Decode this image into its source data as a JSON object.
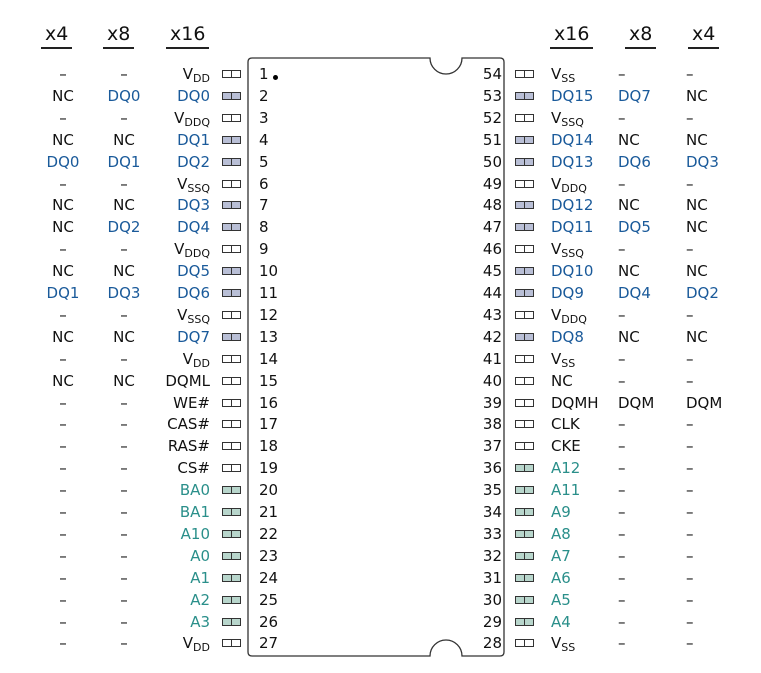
{
  "headers": {
    "left": [
      "x4",
      "x8",
      "x16"
    ],
    "right": [
      "x16",
      "x8",
      "x4"
    ]
  },
  "colors": {
    "data_signal": "#1a5a9a",
    "address_signal": "#2a8f8a",
    "default": "#111111"
  },
  "left_pins": [
    {
      "num": "1",
      "x4": "–",
      "x8": "–",
      "x16": "V",
      "x16_sub": "DD",
      "x16_color": "default",
      "x4_color": "default",
      "x8_color": "default",
      "fill": "none"
    },
    {
      "num": "2",
      "x4": "NC",
      "x8": "DQ0",
      "x16": "DQ0",
      "x16_sub": "",
      "x16_color": "data_signal",
      "x4_color": "default",
      "x8_color": "data_signal",
      "fill": "blue"
    },
    {
      "num": "3",
      "x4": "–",
      "x8": "–",
      "x16": "V",
      "x16_sub": "DDQ",
      "x16_color": "default",
      "x4_color": "default",
      "x8_color": "default",
      "fill": "none"
    },
    {
      "num": "4",
      "x4": "NC",
      "x8": "NC",
      "x16": "DQ1",
      "x16_sub": "",
      "x16_color": "data_signal",
      "x4_color": "default",
      "x8_color": "default",
      "fill": "blue"
    },
    {
      "num": "5",
      "x4": "DQ0",
      "x8": "DQ1",
      "x16": "DQ2",
      "x16_sub": "",
      "x16_color": "data_signal",
      "x4_color": "data_signal",
      "x8_color": "data_signal",
      "fill": "blue"
    },
    {
      "num": "6",
      "x4": "–",
      "x8": "–",
      "x16": "V",
      "x16_sub": "SSQ",
      "x16_color": "default",
      "x4_color": "default",
      "x8_color": "default",
      "fill": "none"
    },
    {
      "num": "7",
      "x4": "NC",
      "x8": "NC",
      "x16": "DQ3",
      "x16_sub": "",
      "x16_color": "data_signal",
      "x4_color": "default",
      "x8_color": "default",
      "fill": "blue"
    },
    {
      "num": "8",
      "x4": "NC",
      "x8": "DQ2",
      "x16": "DQ4",
      "x16_sub": "",
      "x16_color": "data_signal",
      "x4_color": "default",
      "x8_color": "data_signal",
      "fill": "blue"
    },
    {
      "num": "9",
      "x4": "–",
      "x8": "–",
      "x16": "V",
      "x16_sub": "DDQ",
      "x16_color": "default",
      "x4_color": "default",
      "x8_color": "default",
      "fill": "none"
    },
    {
      "num": "10",
      "x4": "NC",
      "x8": "NC",
      "x16": "DQ5",
      "x16_sub": "",
      "x16_color": "data_signal",
      "x4_color": "default",
      "x8_color": "default",
      "fill": "blue"
    },
    {
      "num": "11",
      "x4": "DQ1",
      "x8": "DQ3",
      "x16": "DQ6",
      "x16_sub": "",
      "x16_color": "data_signal",
      "x4_color": "data_signal",
      "x8_color": "data_signal",
      "fill": "blue"
    },
    {
      "num": "12",
      "x4": "–",
      "x8": "–",
      "x16": "V",
      "x16_sub": "SSQ",
      "x16_color": "default",
      "x4_color": "default",
      "x8_color": "default",
      "fill": "none"
    },
    {
      "num": "13",
      "x4": "NC",
      "x8": "NC",
      "x16": "DQ7",
      "x16_sub": "",
      "x16_color": "data_signal",
      "x4_color": "default",
      "x8_color": "default",
      "fill": "blue"
    },
    {
      "num": "14",
      "x4": "–",
      "x8": "–",
      "x16": "V",
      "x16_sub": "DD",
      "x16_color": "default",
      "x4_color": "default",
      "x8_color": "default",
      "fill": "none"
    },
    {
      "num": "15",
      "x4": "NC",
      "x8": "NC",
      "x16": "DQML",
      "x16_sub": "",
      "x16_color": "default",
      "x4_color": "default",
      "x8_color": "default",
      "fill": "none"
    },
    {
      "num": "16",
      "x4": "–",
      "x8": "–",
      "x16": "WE#",
      "x16_sub": "",
      "x16_color": "default",
      "x4_color": "default",
      "x8_color": "default",
      "fill": "none"
    },
    {
      "num": "17",
      "x4": "–",
      "x8": "–",
      "x16": "CAS#",
      "x16_sub": "",
      "x16_color": "default",
      "x4_color": "default",
      "x8_color": "default",
      "fill": "none"
    },
    {
      "num": "18",
      "x4": "–",
      "x8": "–",
      "x16": "RAS#",
      "x16_sub": "",
      "x16_color": "default",
      "x4_color": "default",
      "x8_color": "default",
      "fill": "none"
    },
    {
      "num": "19",
      "x4": "–",
      "x8": "–",
      "x16": "CS#",
      "x16_sub": "",
      "x16_color": "default",
      "x4_color": "default",
      "x8_color": "default",
      "fill": "none"
    },
    {
      "num": "20",
      "x4": "–",
      "x8": "–",
      "x16": "BA0",
      "x16_sub": "",
      "x16_color": "address_signal",
      "x4_color": "default",
      "x8_color": "default",
      "fill": "green"
    },
    {
      "num": "21",
      "x4": "–",
      "x8": "–",
      "x16": "BA1",
      "x16_sub": "",
      "x16_color": "address_signal",
      "x4_color": "default",
      "x8_color": "default",
      "fill": "green"
    },
    {
      "num": "22",
      "x4": "–",
      "x8": "–",
      "x16": "A10",
      "x16_sub": "",
      "x16_color": "address_signal",
      "x4_color": "default",
      "x8_color": "default",
      "fill": "green"
    },
    {
      "num": "23",
      "x4": "–",
      "x8": "–",
      "x16": "A0",
      "x16_sub": "",
      "x16_color": "address_signal",
      "x4_color": "default",
      "x8_color": "default",
      "fill": "green"
    },
    {
      "num": "24",
      "x4": "–",
      "x8": "–",
      "x16": "A1",
      "x16_sub": "",
      "x16_color": "address_signal",
      "x4_color": "default",
      "x8_color": "default",
      "fill": "green"
    },
    {
      "num": "25",
      "x4": "–",
      "x8": "–",
      "x16": "A2",
      "x16_sub": "",
      "x16_color": "address_signal",
      "x4_color": "default",
      "x8_color": "default",
      "fill": "green"
    },
    {
      "num": "26",
      "x4": "–",
      "x8": "–",
      "x16": "A3",
      "x16_sub": "",
      "x16_color": "address_signal",
      "x4_color": "default",
      "x8_color": "default",
      "fill": "green"
    },
    {
      "num": "27",
      "x4": "–",
      "x8": "–",
      "x16": "V",
      "x16_sub": "DD",
      "x16_color": "default",
      "x4_color": "default",
      "x8_color": "default",
      "fill": "none"
    }
  ],
  "right_pins": [
    {
      "num": "54",
      "x16": "V",
      "x16_sub": "SS",
      "x8": "–",
      "x4": "–",
      "x16_color": "default",
      "x8_color": "default",
      "x4_color": "default",
      "fill": "none"
    },
    {
      "num": "53",
      "x16": "DQ15",
      "x16_sub": "",
      "x8": "DQ7",
      "x4": "NC",
      "x16_color": "data_signal",
      "x8_color": "data_signal",
      "x4_color": "default",
      "fill": "blue"
    },
    {
      "num": "52",
      "x16": "V",
      "x16_sub": "SSQ",
      "x8": "–",
      "x4": "–",
      "x16_color": "default",
      "x8_color": "default",
      "x4_color": "default",
      "fill": "none"
    },
    {
      "num": "51",
      "x16": "DQ14",
      "x16_sub": "",
      "x8": "NC",
      "x4": "NC",
      "x16_color": "data_signal",
      "x8_color": "default",
      "x4_color": "default",
      "fill": "blue"
    },
    {
      "num": "50",
      "x16": "DQ13",
      "x16_sub": "",
      "x8": "DQ6",
      "x4": "DQ3",
      "x16_color": "data_signal",
      "x8_color": "data_signal",
      "x4_color": "data_signal",
      "fill": "blue"
    },
    {
      "num": "49",
      "x16": "V",
      "x16_sub": "DDQ",
      "x8": "–",
      "x4": "–",
      "x16_color": "default",
      "x8_color": "default",
      "x4_color": "default",
      "fill": "none"
    },
    {
      "num": "48",
      "x16": "DQ12",
      "x16_sub": "",
      "x8": "NC",
      "x4": "NC",
      "x16_color": "data_signal",
      "x8_color": "default",
      "x4_color": "default",
      "fill": "blue"
    },
    {
      "num": "47",
      "x16": "DQ11",
      "x16_sub": "",
      "x8": "DQ5",
      "x4": "NC",
      "x16_color": "data_signal",
      "x8_color": "data_signal",
      "x4_color": "default",
      "fill": "blue"
    },
    {
      "num": "46",
      "x16": "V",
      "x16_sub": "SSQ",
      "x8": "–",
      "x4": "–",
      "x16_color": "default",
      "x8_color": "default",
      "x4_color": "default",
      "fill": "none"
    },
    {
      "num": "45",
      "x16": "DQ10",
      "x16_sub": "",
      "x8": "NC",
      "x4": "NC",
      "x16_color": "data_signal",
      "x8_color": "default",
      "x4_color": "default",
      "fill": "blue"
    },
    {
      "num": "44",
      "x16": "DQ9",
      "x16_sub": "",
      "x8": "DQ4",
      "x4": "DQ2",
      "x16_color": "data_signal",
      "x8_color": "data_signal",
      "x4_color": "data_signal",
      "fill": "blue"
    },
    {
      "num": "43",
      "x16": "V",
      "x16_sub": "DDQ",
      "x8": "–",
      "x4": "–",
      "x16_color": "default",
      "x8_color": "default",
      "x4_color": "default",
      "fill": "none"
    },
    {
      "num": "42",
      "x16": "DQ8",
      "x16_sub": "",
      "x8": "NC",
      "x4": "NC",
      "x16_color": "data_signal",
      "x8_color": "default",
      "x4_color": "default",
      "fill": "blue"
    },
    {
      "num": "41",
      "x16": "V",
      "x16_sub": "SS",
      "x8": "–",
      "x4": "–",
      "x16_color": "default",
      "x8_color": "default",
      "x4_color": "default",
      "fill": "none"
    },
    {
      "num": "40",
      "x16": "NC",
      "x16_sub": "",
      "x8": "–",
      "x4": "–",
      "x16_color": "default",
      "x8_color": "default",
      "x4_color": "default",
      "fill": "none"
    },
    {
      "num": "39",
      "x16": "DQMH",
      "x16_sub": "",
      "x8": "DQM",
      "x4": "DQM",
      "x16_color": "default",
      "x8_color": "default",
      "x4_color": "default",
      "fill": "none"
    },
    {
      "num": "38",
      "x16": "CLK",
      "x16_sub": "",
      "x8": "–",
      "x4": "–",
      "x16_color": "default",
      "x8_color": "default",
      "x4_color": "default",
      "fill": "none"
    },
    {
      "num": "37",
      "x16": "CKE",
      "x16_sub": "",
      "x8": "–",
      "x4": "–",
      "x16_color": "default",
      "x8_color": "default",
      "x4_color": "default",
      "fill": "none"
    },
    {
      "num": "36",
      "x16": "A12",
      "x16_sub": "",
      "x8": "–",
      "x4": "–",
      "x16_color": "address_signal",
      "x8_color": "default",
      "x4_color": "default",
      "fill": "green"
    },
    {
      "num": "35",
      "x16": "A11",
      "x16_sub": "",
      "x8": "–",
      "x4": "–",
      "x16_color": "address_signal",
      "x8_color": "default",
      "x4_color": "default",
      "fill": "green"
    },
    {
      "num": "34",
      "x16": "A9",
      "x16_sub": "",
      "x8": "–",
      "x4": "–",
      "x16_color": "address_signal",
      "x8_color": "default",
      "x4_color": "default",
      "fill": "green"
    },
    {
      "num": "33",
      "x16": "A8",
      "x16_sub": "",
      "x8": "–",
      "x4": "–",
      "x16_color": "address_signal",
      "x8_color": "default",
      "x4_color": "default",
      "fill": "green"
    },
    {
      "num": "32",
      "x16": "A7",
      "x16_sub": "",
      "x8": "–",
      "x4": "–",
      "x16_color": "address_signal",
      "x8_color": "default",
      "x4_color": "default",
      "fill": "green"
    },
    {
      "num": "31",
      "x16": "A6",
      "x16_sub": "",
      "x8": "–",
      "x4": "–",
      "x16_color": "address_signal",
      "x8_color": "default",
      "x4_color": "default",
      "fill": "green"
    },
    {
      "num": "30",
      "x16": "A5",
      "x16_sub": "",
      "x8": "–",
      "x4": "–",
      "x16_color": "address_signal",
      "x8_color": "default",
      "x4_color": "default",
      "fill": "green"
    },
    {
      "num": "29",
      "x16": "A4",
      "x16_sub": "",
      "x8": "–",
      "x4": "–",
      "x16_color": "address_signal",
      "x8_color": "default",
      "x4_color": "default",
      "fill": "green"
    },
    {
      "num": "28",
      "x16": "V",
      "x16_sub": "SS",
      "x8": "–",
      "x4": "–",
      "x16_color": "default",
      "x8_color": "default",
      "x4_color": "default",
      "fill": "none"
    }
  ]
}
